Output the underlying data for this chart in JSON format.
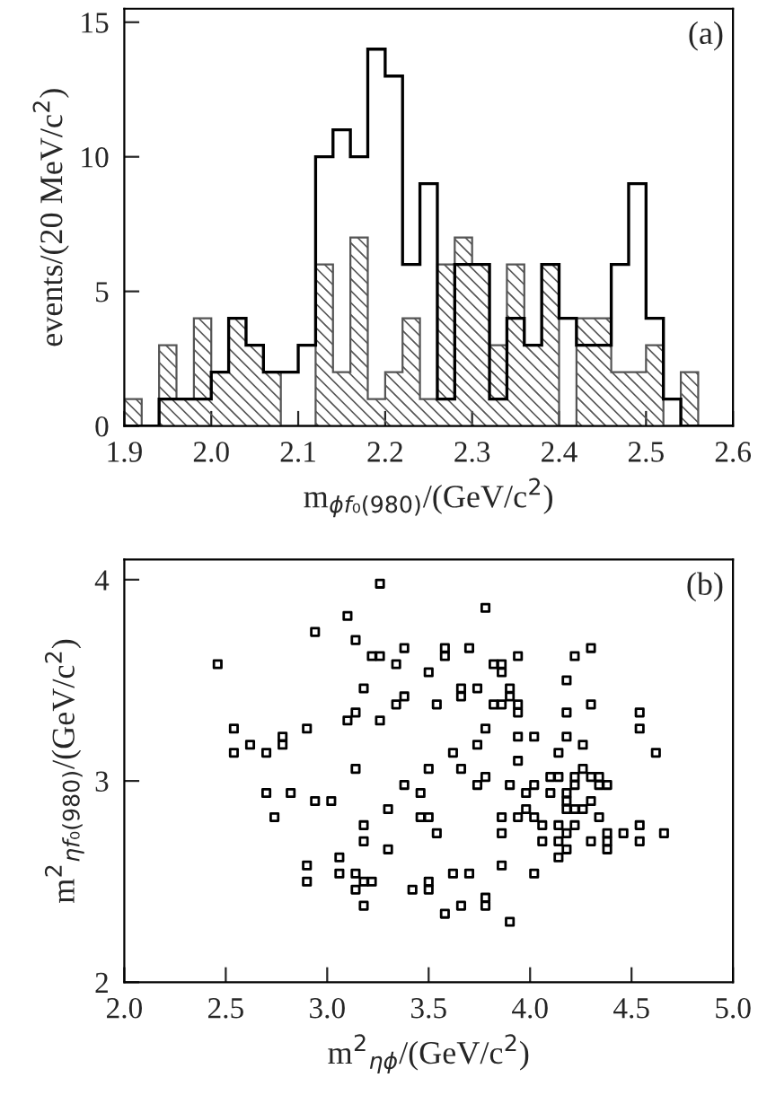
{
  "chart_data": [
    {
      "type": "histogram",
      "xlabel": "m$_{ϕf₀(980)}$/(GeV/c$^{2}$)",
      "ylabel": "events/(20 MeV/c$^{2}$)",
      "annotations": [
        "(a)"
      ],
      "bins": [
        1.9,
        1.92,
        1.94,
        1.96,
        1.98,
        2.0,
        2.02,
        2.04,
        2.06,
        2.08,
        2.1,
        2.12,
        2.14,
        2.16,
        2.18,
        2.2,
        2.22,
        2.24,
        2.26,
        2.28,
        2.3,
        2.32,
        2.34,
        2.36,
        2.38,
        2.4,
        2.42,
        2.44,
        2.46,
        2.48,
        2.5,
        2.52,
        2.54,
        2.56,
        2.58,
        2.6
      ],
      "series": [
        {
          "color": "#000000",
          "values": [
            0,
            0,
            1,
            1,
            1,
            2,
            4,
            3,
            2,
            2,
            3,
            10,
            11,
            10,
            14,
            13,
            6,
            9,
            1,
            6,
            6,
            1,
            4,
            3,
            6,
            4,
            3,
            3,
            6,
            9,
            4,
            1,
            0,
            0,
            0
          ]
        },
        {
          "color": "#555555",
          "values": [
            1,
            0,
            3,
            1,
            4,
            2,
            4,
            3,
            2,
            0,
            0,
            6,
            2,
            7,
            1,
            2,
            4,
            1,
            6,
            7,
            6,
            3,
            6,
            3,
            6,
            0,
            4,
            4,
            2,
            2,
            3,
            0,
            2,
            0,
            0
          ]
        }
      ],
      "xlim": [
        1.9,
        2.6
      ],
      "xticks": [
        1.9,
        {
          "value": 2.0,
          "label": "2.0"
        },
        2.1,
        2.2,
        2.3,
        2.4,
        2.5,
        2.6
      ],
      "ylim": [
        0,
        15.5
      ],
      "yticks": [
        0,
        5,
        10,
        15
      ],
      "grid": false,
      "legend": false
    },
    {
      "type": "scatter",
      "xlabel": "m$^{2}$$_{ηϕ}$/(GeV/c$^{2}$)",
      "ylabel": "m$^{2}$$_{ηf₀(980)}$/(GeV/c$^{2}$)",
      "annotations": [
        "(b)"
      ],
      "marker": "square",
      "series": [
        {
          "color": "#000000",
          "x": [
            2.46,
            3.26,
            3.1,
            2.94,
            3.14,
            3.22,
            3.26,
            3.38,
            3.34,
            3.5,
            3.18,
            3.38,
            3.34,
            3.14,
            3.1,
            3.26,
            2.54,
            2.9,
            2.78,
            2.78,
            2.54,
            2.62,
            2.7,
            3.14,
            3.5,
            3.38,
            3.46,
            2.7,
            2.82,
            2.94,
            3.02,
            2.74,
            3.3,
            3.46,
            3.5,
            3.18,
            3.18,
            3.3,
            3.06,
            2.9,
            2.9,
            3.06,
            3.14,
            3.14,
            3.18,
            3.22,
            3.18,
            3.42,
            3.5,
            3.5,
            3.78,
            3.58,
            3.58,
            3.7,
            3.82,
            3.86,
            3.86,
            3.94,
            4.22,
            4.3,
            4.18,
            3.66,
            3.66,
            3.74,
            3.54,
            3.82,
            3.86,
            3.9,
            3.9,
            3.94,
            3.94,
            4.18,
            4.3,
            4.54,
            4.54,
            3.78,
            3.94,
            4.02,
            4.18,
            3.74,
            3.62,
            3.94,
            4.14,
            4.26,
            4.62,
            3.66,
            3.78,
            3.74,
            3.9,
            4.02,
            4.1,
            4.14,
            4.22,
            4.22,
            4.26,
            4.3,
            4.34,
            4.34,
            4.38,
            3.98,
            4.1,
            4.18,
            4.18,
            4.18,
            4.22,
            4.26,
            4.3,
            3.54,
            3.86,
            3.86,
            3.94,
            3.98,
            4.02,
            4.06,
            4.06,
            4.14,
            4.14,
            4.18,
            4.18,
            4.22,
            4.14,
            4.3,
            4.34,
            4.38,
            4.38,
            4.38,
            4.46,
            4.54,
            4.54,
            4.66,
            3.86,
            3.62,
            3.7,
            4.02,
            3.78,
            3.78,
            3.66,
            3.58,
            3.9
          ],
          "values": [
            3.58,
            3.98,
            3.82,
            3.74,
            3.7,
            3.62,
            3.62,
            3.66,
            3.58,
            3.54,
            3.46,
            3.42,
            3.38,
            3.34,
            3.3,
            3.3,
            3.26,
            3.26,
            3.22,
            3.18,
            3.14,
            3.18,
            3.14,
            3.06,
            3.06,
            2.98,
            2.94,
            2.94,
            2.94,
            2.9,
            2.9,
            2.82,
            2.86,
            2.82,
            2.82,
            2.78,
            2.7,
            2.66,
            2.62,
            2.58,
            2.5,
            2.54,
            2.54,
            2.46,
            2.5,
            2.5,
            2.38,
            2.46,
            2.5,
            2.46,
            3.86,
            3.66,
            3.62,
            3.66,
            3.58,
            3.58,
            3.54,
            3.62,
            3.62,
            3.66,
            3.5,
            3.46,
            3.42,
            3.46,
            3.38,
            3.38,
            3.38,
            3.46,
            3.42,
            3.38,
            3.34,
            3.34,
            3.38,
            3.34,
            3.26,
            3.26,
            3.22,
            3.22,
            3.22,
            3.18,
            3.14,
            3.1,
            3.14,
            3.18,
            3.14,
            3.06,
            3.02,
            2.98,
            2.98,
            2.98,
            3.02,
            3.02,
            3.02,
            2.98,
            3.06,
            3.02,
            3.02,
            2.98,
            2.98,
            2.94,
            2.94,
            2.94,
            2.9,
            2.86,
            2.86,
            2.86,
            2.9,
            2.74,
            2.82,
            2.74,
            2.82,
            2.86,
            2.82,
            2.78,
            2.7,
            2.78,
            2.7,
            2.74,
            2.66,
            2.78,
            2.62,
            2.7,
            2.82,
            2.74,
            2.7,
            2.66,
            2.74,
            2.78,
            2.7,
            2.74,
            2.58,
            2.54,
            2.54,
            2.54,
            2.42,
            2.38,
            2.38,
            2.34,
            2.3
          ]
        }
      ],
      "xlim": [
        2.0,
        5.0
      ],
      "xticks": [
        {
          "value": 2.0,
          "label": "2.0"
        },
        {
          "value": 2.5,
          "label": "2.5"
        },
        {
          "value": 3.0,
          "label": "3.0"
        },
        {
          "value": 3.5,
          "label": "3.5"
        },
        {
          "value": 4.0,
          "label": "4.0"
        },
        {
          "value": 4.5,
          "label": "4.5"
        },
        {
          "value": 5.0,
          "label": "5.0"
        }
      ],
      "ylim": [
        2.0,
        4.1
      ],
      "yticks": [
        2,
        3,
        4
      ],
      "grid": false,
      "legend": false
    }
  ]
}
